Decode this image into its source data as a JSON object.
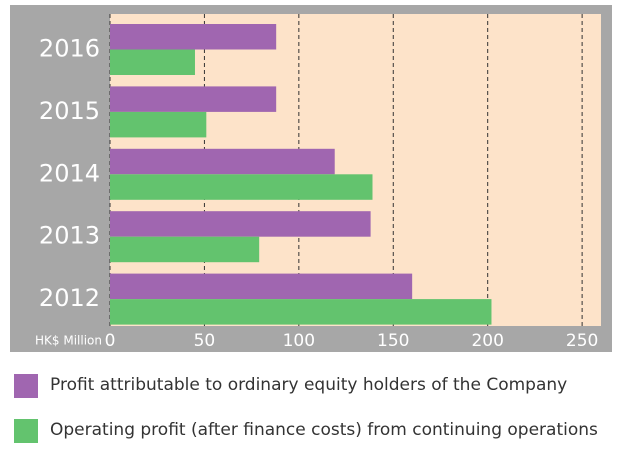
{
  "chart_data": {
    "type": "bar",
    "orientation": "horizontal",
    "categories": [
      "2016",
      "2015",
      "2014",
      "2013",
      "2012"
    ],
    "series": [
      {
        "name": "Profit attributable to ordinary equity holders of the Company",
        "color": "#a066b0",
        "values": [
          88,
          88,
          119,
          138,
          160
        ]
      },
      {
        "name": "Operating profit (after finance costs) from continuing operations",
        "color": "#63c36e",
        "values": [
          45,
          51,
          139,
          79,
          202
        ]
      }
    ],
    "xlabel": "HK$ Million",
    "xlim": [
      0,
      260
    ],
    "xticks": [
      0,
      50,
      100,
      150,
      200,
      250
    ],
    "grid": true
  }
}
